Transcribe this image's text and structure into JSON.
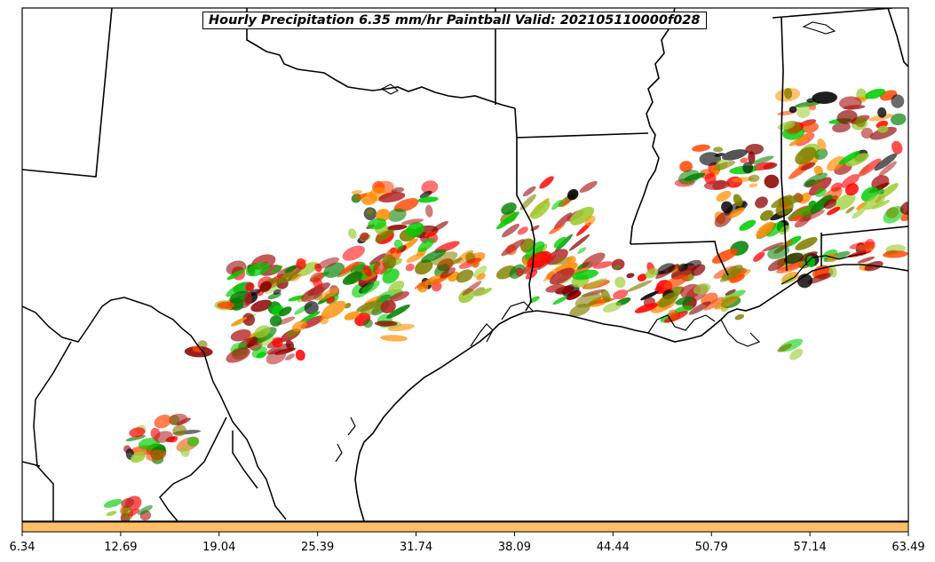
{
  "title": "Hourly Precipitation 6.35 mm/hr Paintball Valid: 202105110000f028",
  "colorbar": {
    "fill_color": "#ffbf66",
    "tick_labels": [
      "6.34",
      "12.69",
      "19.04",
      "25.39",
      "31.74",
      "38.09",
      "44.44",
      "50.79",
      "57.14",
      "63.49"
    ]
  },
  "paintball_colors": [
    "#ff0000",
    "#ff8c00",
    "#8b0000",
    "#008000",
    "#00cc00",
    "#808000",
    "#000000",
    "#b22222",
    "#ff4500",
    "#9acd32"
  ],
  "map": {
    "region": "Texas Gulf Coast and Lower Mississippi Valley",
    "coastline_color": "#000000",
    "border_color": "#000000"
  }
}
